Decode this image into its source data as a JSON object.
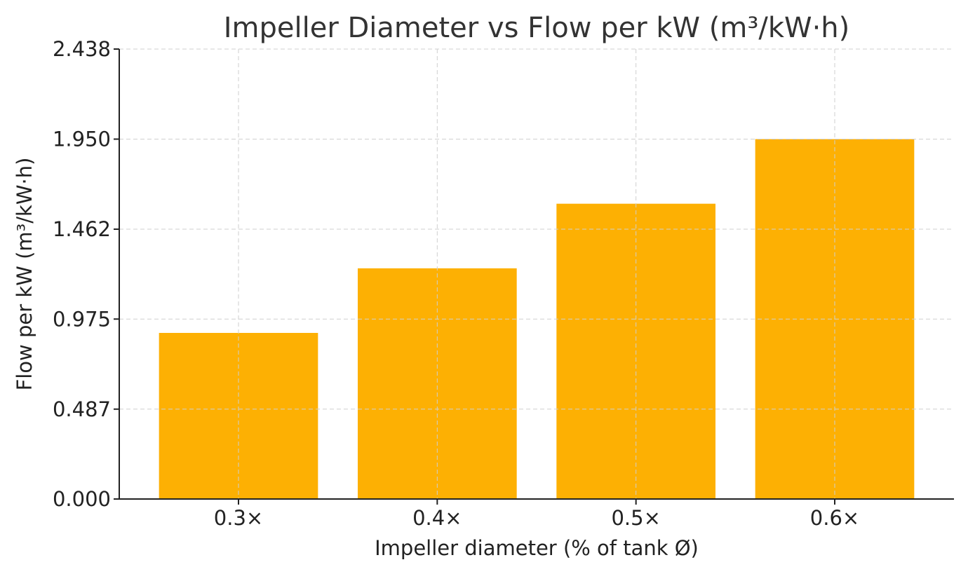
{
  "chart_data": {
    "type": "bar",
    "title": "Impeller Diameter vs Flow per kW (m³/kW·h)",
    "xlabel": "Impeller diameter (% of tank Ø)",
    "ylabel": "Flow per kW (m³/kW·h)",
    "categories": [
      "0.3×",
      "0.4×",
      "0.5×",
      "0.6×"
    ],
    "values": [
      0.9,
      1.25,
      1.6,
      1.95
    ],
    "ylim": [
      0,
      2.438
    ],
    "yticks": [
      "0.000",
      "0.487",
      "0.975",
      "1.462",
      "1.950",
      "2.438"
    ],
    "grid": true,
    "bar_color": "#FDB003"
  }
}
